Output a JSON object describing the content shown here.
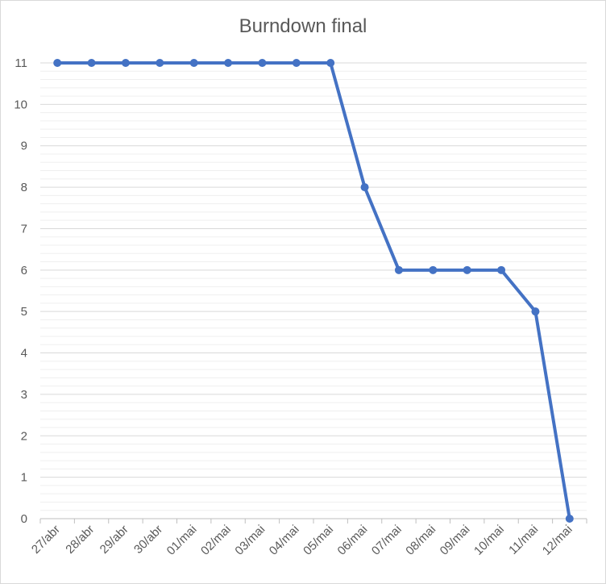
{
  "chart_data": {
    "type": "line",
    "title": "Burndown final",
    "xlabel": "",
    "ylabel": "",
    "categories": [
      "27/abr",
      "28/abr",
      "29/abr",
      "30/abr",
      "01/mai",
      "02/mai",
      "03/mai",
      "04/mai",
      "05/mai",
      "06/mai",
      "07/mai",
      "08/mai",
      "09/mai",
      "10/mai",
      "11/mai",
      "12/mai"
    ],
    "series": [
      {
        "values": [
          11,
          11,
          11,
          11,
          11,
          11,
          11,
          11,
          11,
          8,
          6,
          6,
          6,
          6,
          5,
          0
        ],
        "color": "#4472c4"
      }
    ],
    "ylim": [
      0,
      11
    ],
    "yticks": [
      0,
      1,
      2,
      3,
      4,
      5,
      6,
      7,
      8,
      9,
      10,
      11
    ],
    "grid": {
      "major": true,
      "minor": true,
      "minor_per_major": 5
    },
    "legend": "none",
    "colors": {
      "line": "#4472c4",
      "major_grid": "#d9d9d9",
      "minor_grid": "#efefef",
      "text": "#595959"
    }
  }
}
